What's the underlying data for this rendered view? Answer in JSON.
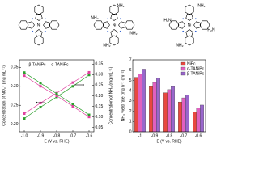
{
  "molecules": [
    {
      "metal": "Ni"
    },
    {
      "metal": "Ni",
      "groups": [
        "NH₂",
        "NH₂",
        "NH₂",
        "NH₂"
      ]
    },
    {
      "metal": "Ni",
      "groups": [
        "NH₂",
        "H₂N",
        "NH₂",
        "H₂N"
      ]
    }
  ],
  "chart_data": [
    {
      "type": "line",
      "xlabel": "E (V vs. RHE)",
      "ylabel": "Concentration of NO₃⁻ (mg mL⁻¹)",
      "y2label": "Concentration of NH₃ (mg mL⁻¹)",
      "x": [
        -1,
        -0.9,
        -0.8,
        -0.7,
        -0.6
      ],
      "xlim": [
        -1.03,
        -0.57
      ],
      "xticks": [
        {
          "value": -1,
          "label": "-1.0"
        },
        -0.9,
        -0.8,
        -0.7,
        -0.6
      ],
      "ylim": [
        0.18,
        0.37
      ],
      "yticks": [
        {
          "value": 0.2,
          "label": "0.20"
        },
        0.25,
        {
          "value": 0.3,
          "label": "0.30"
        },
        0.35
      ],
      "y2lim": [
        0.03,
        0.37
      ],
      "y2ticks": [
        0.05,
        {
          "value": 0.1,
          "label": "0.10"
        },
        0.15,
        {
          "value": 0.2,
          "label": "0.20"
        },
        0.25,
        {
          "value": 0.3,
          "label": "0.30"
        },
        0.35
      ],
      "series": [
        {
          "name": "β-TANiPc",
          "color": "#2ca02c",
          "values": [
            0.215,
            0.245,
            0.272,
            0.3,
            0.33
          ]
        },
        {
          "name": "α-TANiPc",
          "color": "#e0409f",
          "values": [
            0.228,
            0.256,
            0.282,
            0.31,
            0.337
          ]
        },
        {
          "name": "β-TANiPc",
          "color": "#2ca02c",
          "axis": "y2",
          "values": [
            0.31,
            0.26,
            0.21,
            0.16,
            0.11
          ]
        },
        {
          "name": "α-TANiPc",
          "color": "#e0409f",
          "axis": "y2",
          "values": [
            0.295,
            0.245,
            0.2,
            0.15,
            0.1
          ]
        }
      ]
    },
    {
      "type": "bar",
      "xlabel": "E (V vs. RHE)",
      "ylabel": "NH₃ yield rate (mg h⁻¹ cm⁻²)",
      "categories": [
        "-1",
        "-0.9",
        "-0.8",
        "-0.7",
        "-0.6"
      ],
      "ylim": [
        0,
        7
      ],
      "yticks": [
        0,
        1,
        2,
        3,
        4,
        5,
        6,
        7
      ],
      "legend": "upper right",
      "series": [
        {
          "name": "NiPc",
          "color": "#e8483f",
          "values": [
            5.3,
            4.4,
            3.8,
            2.9,
            1.9
          ]
        },
        {
          "name": "α-TANiPc",
          "color": "#e060c0",
          "values": [
            5.6,
            4.8,
            4.1,
            3.3,
            2.3
          ]
        },
        {
          "name": "β-TANiPc",
          "color": "#9966cc",
          "values": [
            6.1,
            5.2,
            4.4,
            3.6,
            2.6
          ]
        }
      ]
    }
  ]
}
